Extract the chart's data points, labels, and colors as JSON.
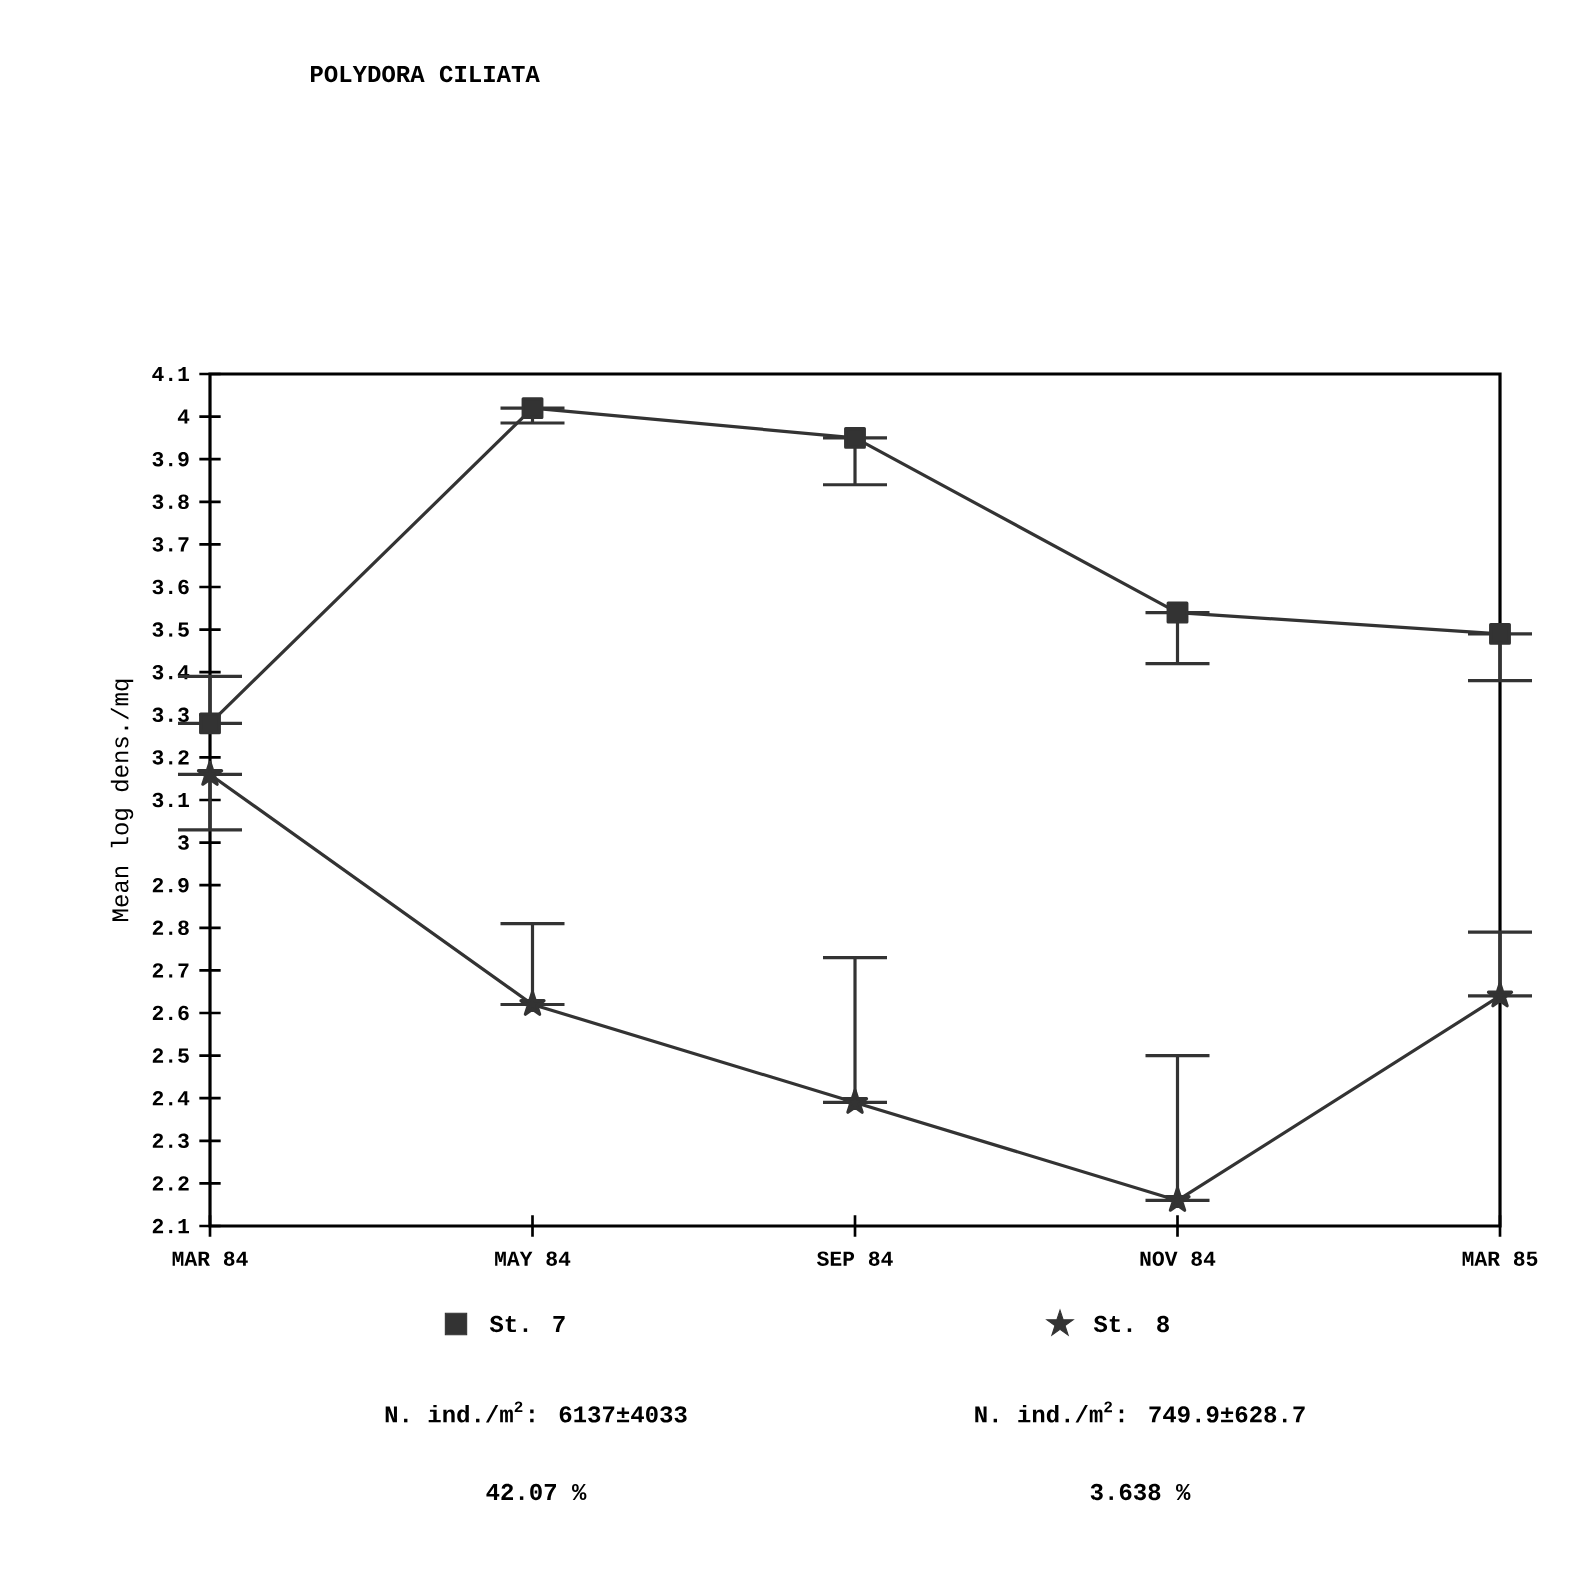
{
  "chart_data": {
    "type": "line",
    "title": "POLYDORA CILIATA",
    "ylabel": "Mean log dens./mq",
    "categories": [
      "MAR 84",
      "MAY 84",
      "SEP 84",
      "NOV 84",
      "MAR 85"
    ],
    "ylim": [
      2.1,
      4.1
    ],
    "yticks": [
      2.1,
      2.2,
      2.3,
      2.4,
      2.5,
      2.6,
      2.7,
      2.8,
      2.9,
      3,
      3.1,
      3.2,
      3.3,
      3.4,
      3.5,
      3.6,
      3.7,
      3.8,
      3.9,
      4,
      4.1
    ],
    "series": [
      {
        "name": "St. 7",
        "color": "#333333",
        "marker": "square",
        "values": [
          3.28,
          4.02,
          3.95,
          3.54,
          3.49
        ],
        "errors": [
          [
            3.28,
            3.39
          ],
          [
            3.985,
            4.02
          ],
          [
            3.84,
            3.95
          ],
          [
            3.42,
            3.54
          ],
          [
            3.38,
            3.49
          ]
        ]
      },
      {
        "name": "St. 8",
        "color": "#333333",
        "marker": "star",
        "values": [
          3.16,
          2.62,
          2.39,
          2.16,
          2.64
        ],
        "errors": [
          [
            3.03,
            3.16
          ],
          [
            2.62,
            2.81
          ],
          [
            2.39,
            2.73
          ],
          [
            2.16,
            2.5
          ],
          [
            2.64,
            2.79
          ]
        ]
      }
    ],
    "legend": "bottom",
    "line_style": "solid",
    "annotations": [
      "N. ind./m$^{2}$: 6137±4033",
      "N. ind./m$^{2}$: 749.9±628.7",
      "42.07 %",
      "3.638 %"
    ]
  }
}
